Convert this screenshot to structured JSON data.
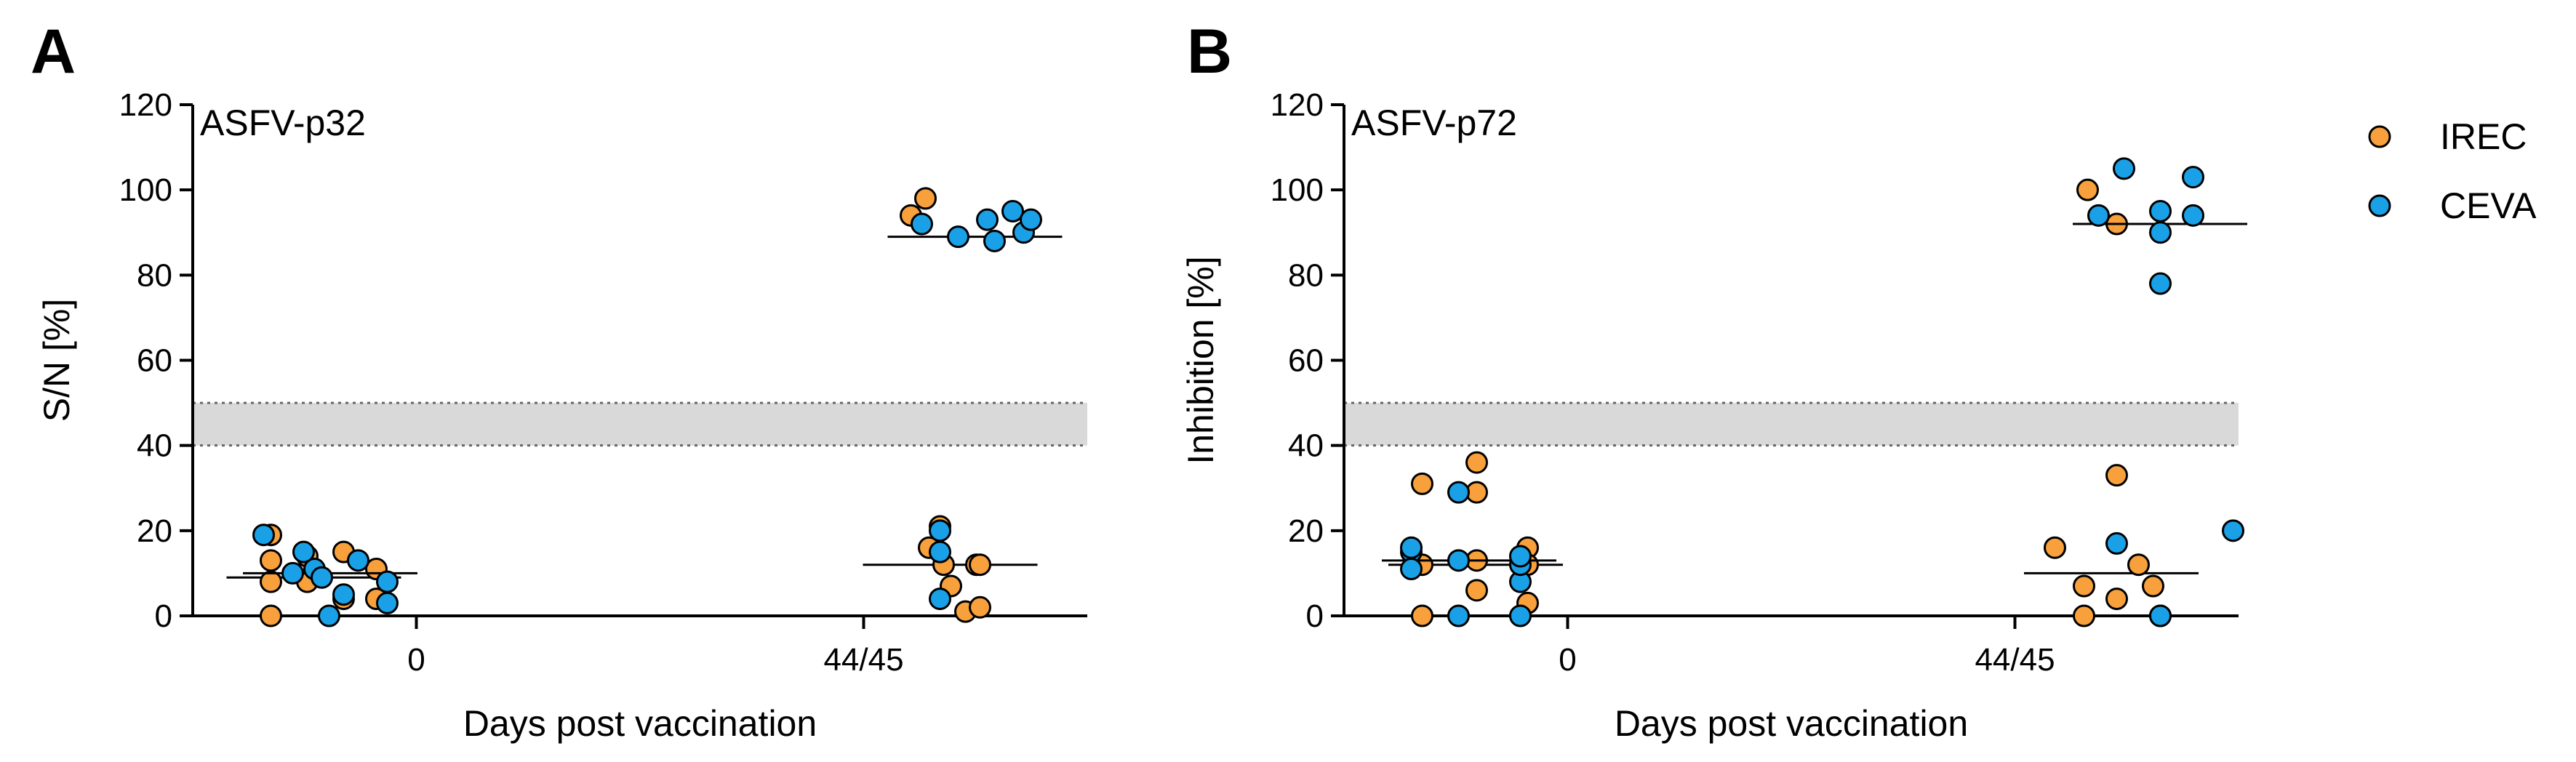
{
  "legend": [
    {
      "name": "IREC",
      "color": "#F7A03C"
    },
    {
      "name": "CEVA",
      "color": "#1AA0E6"
    }
  ],
  "chart_data": [
    {
      "type": "scatter",
      "panel": "A",
      "title": "ASFV-p32",
      "xlabel": "Days post vaccination",
      "ylabel": "S/N [%]",
      "categories": [
        "0",
        "44/45"
      ],
      "ylim": [
        0,
        120
      ],
      "yticks": [
        0,
        20,
        40,
        60,
        80,
        100,
        120
      ],
      "threshold_band": [
        40,
        50
      ],
      "series": [
        {
          "name": "IREC",
          "color": "#F7A03C",
          "groups": [
            {
              "category": "0",
              "values": [
                19,
                13,
                8,
                0,
                14,
                8,
                15,
                4,
                11,
                4
              ],
              "median": 9
            },
            {
              "category": "44/45",
              "values": [
                94,
                98,
                16,
                21,
                12,
                7,
                1,
                2,
                12,
                12
              ],
              "median": 12
            }
          ]
        },
        {
          "name": "CEVA",
          "color": "#1AA0E6",
          "groups": [
            {
              "category": "0",
              "values": [
                19,
                11,
                15,
                0,
                10,
                9,
                5,
                13,
                8,
                3
              ],
              "median": 10
            },
            {
              "category": "44/45",
              "values": [
                92,
                89,
                93,
                88,
                95,
                90,
                93,
                20,
                15,
                4
              ],
              "median": 89
            }
          ]
        }
      ]
    },
    {
      "type": "scatter",
      "panel": "B",
      "title": "ASFV-p72",
      "xlabel": "Days post vaccination",
      "ylabel": "Inhibition [%]",
      "categories": [
        "0",
        "44/45"
      ],
      "ylim": [
        0,
        120
      ],
      "yticks": [
        0,
        20,
        40,
        60,
        80,
        100,
        120
      ],
      "threshold_band": [
        40,
        50
      ],
      "series": [
        {
          "name": "IREC",
          "color": "#F7A03C",
          "groups": [
            {
              "category": "0",
              "values": [
                31,
                12,
                0,
                36,
                29,
                13,
                6,
                16,
                12,
                3
              ],
              "median": 12
            },
            {
              "category": "44/45",
              "values": [
                16,
                7,
                0,
                100,
                92,
                33,
                4,
                12,
                7,
                0
              ],
              "median": 10
            }
          ]
        },
        {
          "name": "CEVA",
          "color": "#1AA0E6",
          "groups": [
            {
              "category": "0",
              "values": [
                15,
                16,
                11,
                13,
                0,
                29,
                8,
                0,
                12,
                14
              ],
              "median": 13
            },
            {
              "category": "44/45",
              "values": [
                94,
                105,
                95,
                90,
                78,
                17,
                0,
                103,
                94,
                20
              ],
              "median": 92
            }
          ]
        }
      ]
    }
  ]
}
